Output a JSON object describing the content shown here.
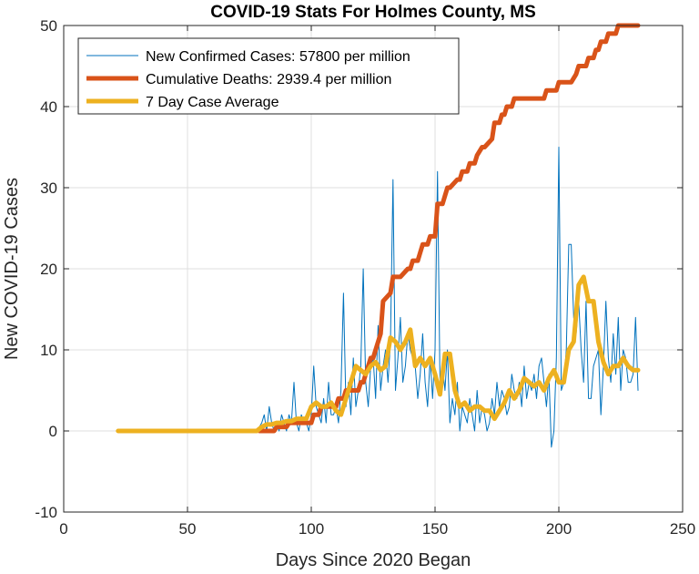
{
  "chart_data": {
    "type": "line",
    "title": "COVID-19 Stats For Holmes County, MS",
    "xlabel": "Days Since 2020 Began",
    "ylabel": "New COVID-19 Cases",
    "xlim": [
      0,
      250
    ],
    "ylim": [
      -10,
      50
    ],
    "xticks": [
      0,
      50,
      100,
      150,
      200,
      250
    ],
    "yticks": [
      -10,
      0,
      10,
      20,
      30,
      40,
      50
    ],
    "grid": true,
    "legend_position": "top-left",
    "series": [
      {
        "name": "New Confirmed Cases: 57800 per million",
        "color": "#0072BD",
        "width": 1,
        "x": [
          22,
          30,
          40,
          50,
          60,
          70,
          78,
          80,
          81,
          82,
          83,
          84,
          85,
          86,
          87,
          88,
          89,
          90,
          91,
          92,
          93,
          94,
          95,
          96,
          97,
          98,
          99,
          100,
          101,
          102,
          103,
          104,
          105,
          106,
          107,
          108,
          109,
          110,
          111,
          112,
          113,
          114,
          115,
          116,
          117,
          118,
          119,
          120,
          121,
          122,
          123,
          124,
          125,
          126,
          127,
          128,
          129,
          130,
          131,
          132,
          133,
          134,
          135,
          136,
          137,
          138,
          139,
          140,
          141,
          142,
          143,
          144,
          145,
          146,
          147,
          148,
          149,
          150,
          151,
          152,
          153,
          154,
          155,
          156,
          157,
          158,
          159,
          160,
          161,
          162,
          163,
          164,
          165,
          166,
          167,
          168,
          169,
          170,
          171,
          172,
          173,
          174,
          175,
          176,
          177,
          178,
          179,
          180,
          181,
          182,
          183,
          184,
          185,
          186,
          187,
          188,
          189,
          190,
          191,
          192,
          193,
          194,
          195,
          196,
          197,
          198,
          199,
          200,
          201,
          202,
          203,
          204,
          205,
          206,
          207,
          208,
          209,
          210,
          211,
          212,
          213,
          214,
          215,
          216,
          217,
          218,
          219,
          220,
          221,
          222,
          223,
          224,
          225,
          226,
          227,
          228,
          229,
          230,
          231,
          232
        ],
        "y": [
          0,
          0,
          0,
          0,
          0,
          0,
          0,
          1,
          2,
          0,
          3,
          1,
          0,
          1,
          0,
          2,
          1,
          0,
          2,
          1,
          6,
          1,
          0,
          2,
          1,
          1,
          0,
          2,
          8,
          3,
          2,
          1,
          4,
          1,
          6,
          2,
          2,
          3,
          1,
          5,
          17,
          3,
          6,
          2,
          9,
          3,
          5,
          8,
          20,
          6,
          3,
          8,
          9,
          4,
          13,
          5,
          8,
          10,
          6,
          11,
          31,
          5,
          9,
          14,
          6,
          8,
          12,
          10,
          9,
          8,
          4,
          7,
          12,
          6,
          3,
          9,
          4,
          10,
          32,
          6,
          8,
          5,
          10,
          1,
          4,
          2,
          6,
          0,
          3,
          2,
          1,
          4,
          2,
          0,
          5,
          1,
          3,
          2,
          0,
          1,
          4,
          2,
          6,
          3,
          5,
          4,
          2,
          3,
          7,
          5,
          4,
          6,
          3,
          8,
          4,
          6,
          5,
          7,
          4,
          8,
          9,
          6,
          3,
          7,
          -2,
          0,
          9,
          35,
          5,
          6,
          10,
          23,
          23,
          14,
          12,
          16,
          10,
          6,
          16,
          4,
          4,
          8,
          9,
          10,
          2,
          8,
          16,
          9,
          6,
          12,
          7,
          14,
          5,
          10,
          9,
          6,
          6,
          7,
          14,
          5
        ],
        "comment": "y values read approximately from the plotted daily new case trace"
      },
      {
        "name": "Cumulative Deaths: 2939.4 per million",
        "color": "#D95319",
        "width": 5,
        "x": [
          79,
          80,
          82,
          84,
          85,
          86,
          90,
          91,
          96,
          97,
          100,
          101,
          103,
          104,
          108,
          109,
          110,
          111,
          113,
          114,
          116,
          117,
          119,
          120,
          121,
          122,
          123,
          124,
          125,
          126,
          128,
          129,
          132,
          133,
          134,
          135,
          136,
          139,
          140,
          141,
          143,
          144,
          145,
          147,
          148,
          149,
          150,
          151,
          152,
          153,
          154,
          155,
          156,
          159,
          160,
          161,
          163,
          164,
          166,
          167,
          169,
          170,
          173,
          174,
          176,
          177,
          178,
          179,
          181,
          182,
          183,
          184,
          190,
          191,
          194,
          195,
          199,
          200,
          204,
          205,
          207,
          208,
          211,
          212,
          214,
          215,
          216,
          217,
          219,
          220,
          222,
          223,
          224,
          225,
          227,
          228,
          229,
          230,
          231,
          232
        ],
        "y": [
          0,
          0,
          0,
          0,
          0,
          0.5,
          0.5,
          1,
          1,
          1,
          1,
          2,
          2,
          3,
          3,
          3,
          3,
          4,
          4,
          5,
          5,
          5,
          5,
          6,
          6,
          7,
          8,
          9,
          9,
          10,
          12,
          16,
          17,
          19,
          19,
          19,
          19,
          20,
          20,
          21,
          21,
          22,
          23,
          23,
          24,
          24,
          24,
          28,
          28,
          28,
          29,
          30,
          30,
          31,
          31,
          32,
          32,
          33,
          33,
          34,
          35,
          35,
          36,
          38,
          38,
          39,
          39,
          40,
          40,
          41,
          41,
          41,
          41,
          41,
          41,
          42,
          42,
          43,
          43,
          43,
          44,
          45,
          45,
          46,
          46,
          47,
          47,
          48,
          48,
          49,
          49,
          49,
          50,
          50,
          50,
          50,
          50,
          50,
          50,
          50
        ],
        "comment": "stepped cumulative curve, values approximate"
      },
      {
        "name": "7 Day Case Average",
        "color": "#EDB120",
        "width": 5,
        "x": [
          22,
          30,
          40,
          50,
          60,
          70,
          78,
          80,
          82,
          84,
          86,
          88,
          90,
          92,
          94,
          96,
          98,
          100,
          102,
          104,
          106,
          108,
          110,
          112,
          114,
          116,
          118,
          120,
          122,
          124,
          126,
          128,
          130,
          132,
          134,
          136,
          138,
          140,
          142,
          144,
          146,
          148,
          150,
          152,
          154,
          156,
          158,
          160,
          162,
          164,
          166,
          168,
          170,
          172,
          174,
          176,
          178,
          180,
          182,
          184,
          186,
          188,
          190,
          192,
          194,
          196,
          198,
          200,
          202,
          204,
          206,
          208,
          210,
          212,
          214,
          216,
          218,
          220,
          222,
          224,
          226,
          228,
          230,
          232
        ],
        "y": [
          0,
          0,
          0,
          0,
          0,
          0,
          0,
          0.5,
          0.8,
          0.8,
          1,
          1,
          1.2,
          1.2,
          1.5,
          1.5,
          1.5,
          3,
          3.5,
          3,
          3,
          3.5,
          2.5,
          2,
          4,
          6,
          8,
          7.5,
          7,
          8,
          8.5,
          7.5,
          8,
          11.5,
          11,
          10,
          11,
          12.5,
          8,
          9,
          8,
          9,
          7,
          4.5,
          9.5,
          9.5,
          5,
          3,
          3.5,
          2.5,
          3,
          3,
          2.5,
          2.5,
          1.5,
          2.5,
          3.5,
          5,
          4,
          5,
          6.5,
          6,
          5.5,
          6,
          5,
          6.5,
          7.5,
          6,
          6,
          10,
          11,
          18,
          19,
          16,
          16,
          11,
          8.5,
          7,
          8,
          8,
          9,
          8,
          7.5,
          7.5
        ],
        "comment": "smoothed average trace, values approximate"
      }
    ]
  }
}
